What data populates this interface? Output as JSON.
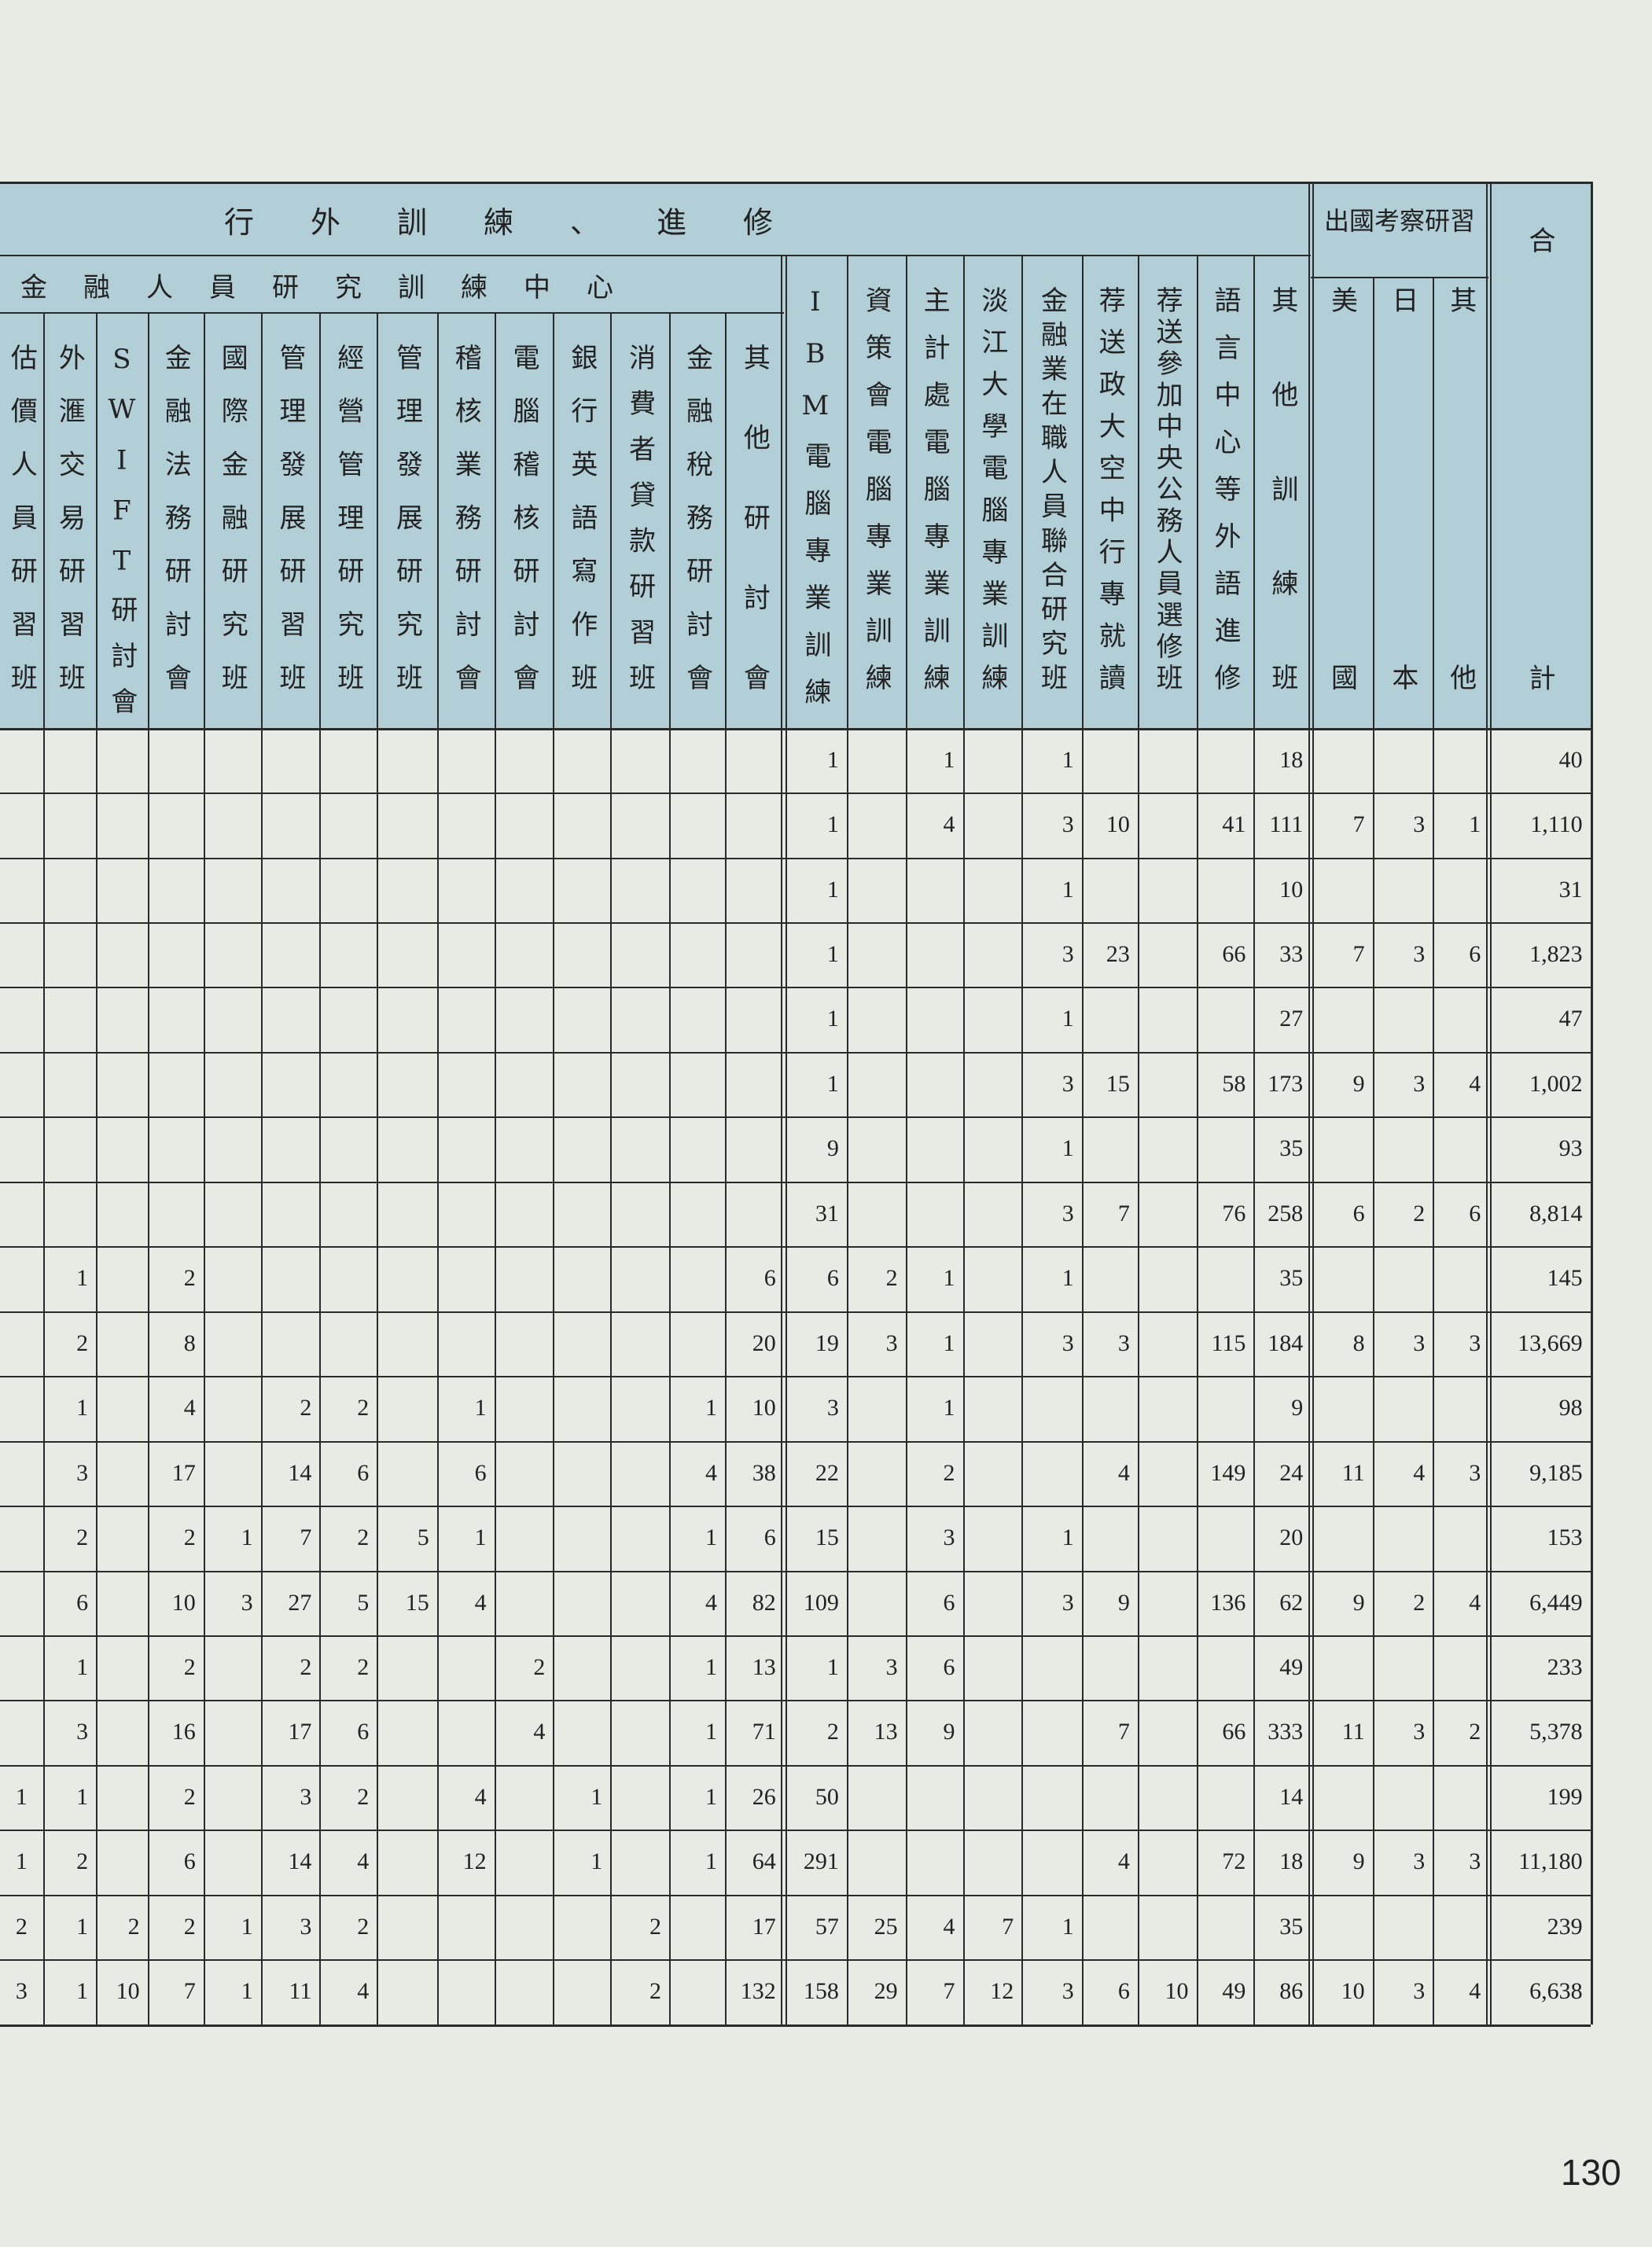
{
  "header": {
    "title": "行外訓練、進修",
    "group": "金融人員研究訓練中心",
    "abroad": "出國考察研習",
    "total": "合計"
  },
  "columns": [
    "估價人員研習班",
    "外滙交易研習班",
    "SWIFT研討會",
    "金融法務研討會",
    "國際金融研究班",
    "管理發展研習班",
    "經營管理研究班",
    "管理發展研究班",
    "稽核業務研討會",
    "電腦稽核研討會",
    "銀行英語寫作班",
    "消費者貸款研習班",
    "金融稅務研討會",
    "其他研討會",
    "IBM電腦專業訓練",
    "資策會電腦專業訓練",
    "主計處電腦專業訓練",
    "淡江大學電腦專業訓練",
    "金融業在職人員聯合研究班",
    "荐送政大空中行專就讀",
    "荐送參加中央公務人員選修班",
    "語言中心等外語進修",
    "其他訓練班",
    "美國",
    "日本",
    "其他"
  ],
  "table": {
    "rows": [
      [
        null,
        null,
        null,
        null,
        null,
        null,
        null,
        null,
        null,
        null,
        null,
        null,
        null,
        null,
        "1",
        null,
        "1",
        null,
        "1",
        null,
        null,
        null,
        "18",
        null,
        null,
        null,
        "40"
      ],
      [
        null,
        null,
        null,
        null,
        null,
        null,
        null,
        null,
        null,
        null,
        null,
        null,
        null,
        null,
        "1",
        null,
        "4",
        null,
        "3",
        "10",
        null,
        "41",
        "111",
        "7",
        "3",
        "1",
        "1,110"
      ],
      [
        null,
        null,
        null,
        null,
        null,
        null,
        null,
        null,
        null,
        null,
        null,
        null,
        null,
        null,
        "1",
        null,
        null,
        null,
        "1",
        null,
        null,
        null,
        "10",
        null,
        null,
        null,
        "31"
      ],
      [
        null,
        null,
        null,
        null,
        null,
        null,
        null,
        null,
        null,
        null,
        null,
        null,
        null,
        null,
        "1",
        null,
        null,
        null,
        "3",
        "23",
        null,
        "66",
        "33",
        "7",
        "3",
        "6",
        "1,823"
      ],
      [
        null,
        null,
        null,
        null,
        null,
        null,
        null,
        null,
        null,
        null,
        null,
        null,
        null,
        null,
        "1",
        null,
        null,
        null,
        "1",
        null,
        null,
        null,
        "27",
        null,
        null,
        null,
        "47"
      ],
      [
        null,
        null,
        null,
        null,
        null,
        null,
        null,
        null,
        null,
        null,
        null,
        null,
        null,
        null,
        "1",
        null,
        null,
        null,
        "3",
        "15",
        null,
        "58",
        "173",
        "9",
        "3",
        "4",
        "1,002"
      ],
      [
        null,
        null,
        null,
        null,
        null,
        null,
        null,
        null,
        null,
        null,
        null,
        null,
        null,
        null,
        "9",
        null,
        null,
        null,
        "1",
        null,
        null,
        null,
        "35",
        null,
        null,
        null,
        "93"
      ],
      [
        null,
        null,
        null,
        null,
        null,
        null,
        null,
        null,
        null,
        null,
        null,
        null,
        null,
        null,
        "31",
        null,
        null,
        null,
        "3",
        "7",
        null,
        "76",
        "258",
        "6",
        "2",
        "6",
        "8,814"
      ],
      [
        null,
        "1",
        null,
        "2",
        null,
        null,
        null,
        null,
        null,
        null,
        null,
        null,
        null,
        "6",
        "6",
        "2",
        "1",
        null,
        "1",
        null,
        null,
        null,
        "35",
        null,
        null,
        null,
        "145"
      ],
      [
        null,
        "2",
        null,
        "8",
        null,
        null,
        null,
        null,
        null,
        null,
        null,
        null,
        null,
        "20",
        "19",
        "3",
        "1",
        null,
        "3",
        "3",
        null,
        "115",
        "184",
        "8",
        "3",
        "3",
        "13,669"
      ],
      [
        null,
        "1",
        null,
        "4",
        null,
        "2",
        "2",
        null,
        "1",
        null,
        null,
        null,
        "1",
        "10",
        "3",
        null,
        "1",
        null,
        null,
        null,
        null,
        null,
        "9",
        null,
        null,
        null,
        "98"
      ],
      [
        null,
        "3",
        null,
        "17",
        null,
        "14",
        "6",
        null,
        "6",
        null,
        null,
        null,
        "4",
        "38",
        "22",
        null,
        "2",
        null,
        null,
        "4",
        null,
        "149",
        "24",
        "11",
        "4",
        "3",
        "9,185"
      ],
      [
        null,
        "2",
        null,
        "2",
        "1",
        "7",
        "2",
        "5",
        "1",
        null,
        null,
        null,
        "1",
        "6",
        "15",
        null,
        "3",
        null,
        "1",
        null,
        null,
        null,
        "20",
        null,
        null,
        null,
        "153"
      ],
      [
        null,
        "6",
        null,
        "10",
        "3",
        "27",
        "5",
        "15",
        "4",
        null,
        null,
        null,
        "4",
        "82",
        "109",
        null,
        "6",
        null,
        "3",
        "9",
        null,
        "136",
        "62",
        "9",
        "2",
        "4",
        "6,449"
      ],
      [
        null,
        "1",
        null,
        "2",
        null,
        "2",
        "2",
        null,
        null,
        "2",
        null,
        null,
        "1",
        "13",
        "1",
        "3",
        "6",
        null,
        null,
        null,
        null,
        null,
        "49",
        null,
        null,
        null,
        "233"
      ],
      [
        null,
        "3",
        null,
        "16",
        null,
        "17",
        "6",
        null,
        null,
        "4",
        null,
        null,
        "1",
        "71",
        "2",
        "13",
        "9",
        null,
        null,
        "7",
        null,
        "66",
        "333",
        "11",
        "3",
        "2",
        "5,378"
      ],
      [
        "1",
        "1",
        null,
        "2",
        null,
        "3",
        "2",
        null,
        "4",
        null,
        "1",
        null,
        "1",
        "26",
        "50",
        null,
        null,
        null,
        null,
        null,
        null,
        null,
        "14",
        null,
        null,
        null,
        "199"
      ],
      [
        "1",
        "2",
        null,
        "6",
        null,
        "14",
        "4",
        null,
        "12",
        null,
        "1",
        null,
        "1",
        "64",
        "291",
        null,
        null,
        null,
        null,
        "4",
        null,
        "72",
        "18",
        "9",
        "3",
        "3",
        "11,180"
      ],
      [
        "2",
        "1",
        "2",
        "2",
        "1",
        "3",
        "2",
        null,
        null,
        null,
        null,
        "2",
        null,
        "17",
        "57",
        "25",
        "4",
        "7",
        "1",
        null,
        null,
        null,
        "35",
        null,
        null,
        null,
        "239"
      ],
      [
        "3",
        "1",
        "10",
        "7",
        "1",
        "11",
        "4",
        null,
        null,
        null,
        null,
        "2",
        null,
        "132",
        "158",
        "29",
        "7",
        "12",
        "3",
        "6",
        "10",
        "49",
        "86",
        "10",
        "3",
        "4",
        "6,638"
      ]
    ]
  },
  "page_number": "130"
}
